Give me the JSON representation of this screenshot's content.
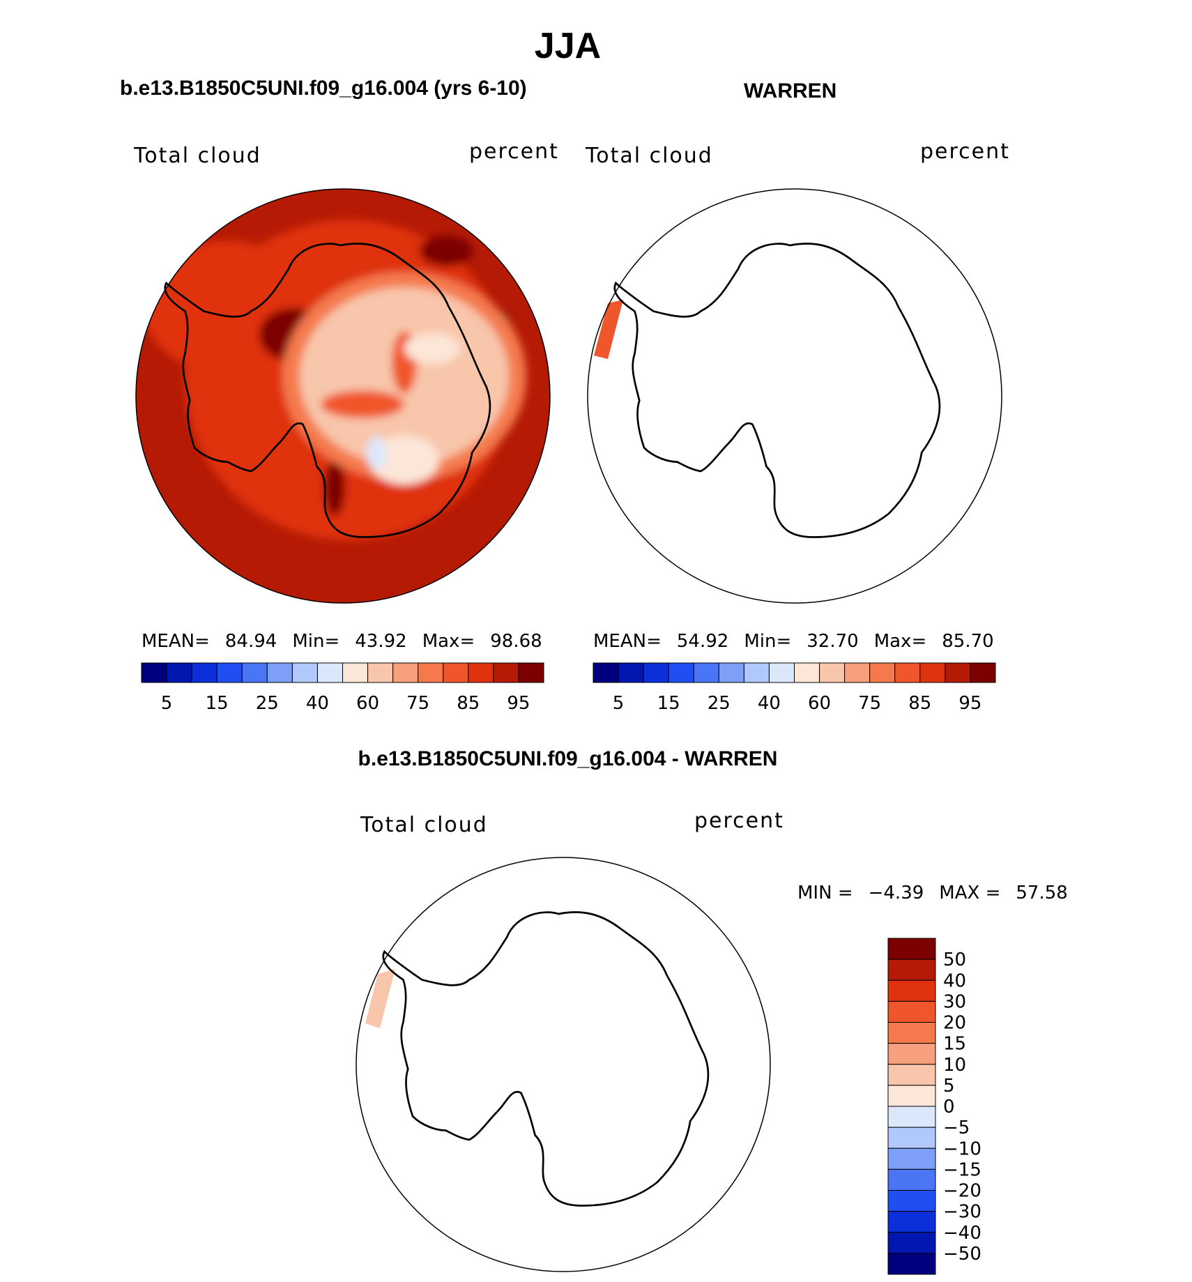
{
  "season_title": "JJA",
  "panels": [
    {
      "title": "b.e13.B1850C5UNI.f09_g16.004 (yrs 6-10)",
      "variable": "Total cloud",
      "units": "percent",
      "stats": {
        "mean_label": "MEAN=",
        "mean": "84.94",
        "min_label": "Min=",
        "min": "43.92",
        "max_label": "Max=",
        "max": "98.68"
      }
    },
    {
      "title": "WARREN",
      "variable": "Total cloud",
      "units": "percent",
      "stats": {
        "mean_label": "MEAN=",
        "mean": "54.92",
        "min_label": "Min=",
        "min": "32.70",
        "max_label": "Max=",
        "max": "85.70"
      }
    },
    {
      "title": "b.e13.B1850C5UNI.f09_g16.004 - WARREN",
      "variable": "Total cloud",
      "units": "percent",
      "stats": {
        "min_label": "MIN =",
        "min": "−4.39",
        "max_label": "MAX =",
        "max": "57.58"
      }
    }
  ],
  "abs_colorbar": {
    "colors": [
      "#00007f",
      "#0018b0",
      "#0b2fd8",
      "#1f4ff2",
      "#4a76f5",
      "#7d9ff7",
      "#b0c9fa",
      "#dbe8fb",
      "#fce6d8",
      "#f8c6ab",
      "#f6a07e",
      "#f47a4d",
      "#f0562b",
      "#df3310",
      "#b51a05",
      "#7c0000"
    ],
    "tick_labels": [
      "5",
      "15",
      "25",
      "40",
      "60",
      "75",
      "85",
      "95"
    ]
  },
  "diff_colorbar": {
    "colors": [
      "#7c0000",
      "#b51a05",
      "#df3310",
      "#f0562b",
      "#f47a4d",
      "#f6a07e",
      "#f8c6ab",
      "#fce6d8",
      "#dbe8fb",
      "#b0c9fa",
      "#7d9ff7",
      "#4a76f5",
      "#1f4ff2",
      "#0b2fd8",
      "#0018b0",
      "#00007f"
    ],
    "tick_labels": [
      "50",
      "40",
      "30",
      "20",
      "15",
      "10",
      "5",
      "0",
      "−5",
      "−10",
      "−15",
      "−20",
      "−30",
      "−40",
      "−50"
    ]
  }
}
